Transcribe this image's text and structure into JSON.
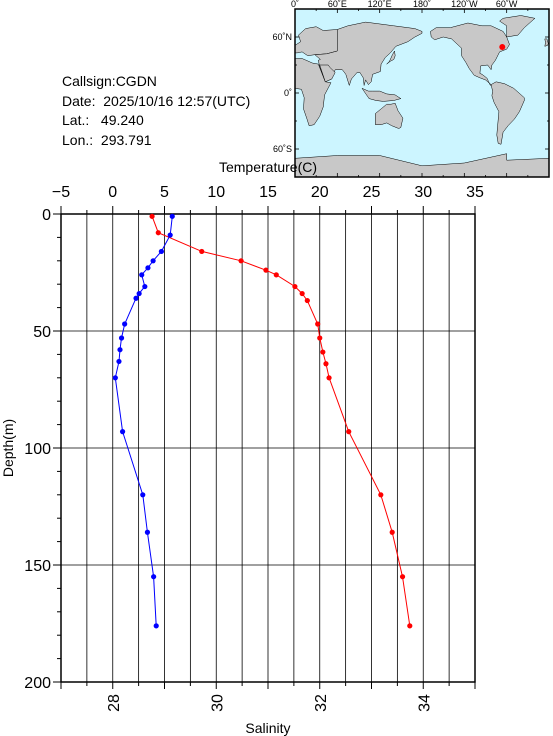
{
  "station": {
    "callsign": "Callsign:CGDN",
    "date": "Date:  2025/10/16 12:57(UTC)",
    "lat": "Lat.:   49.240",
    "lon": "Lon.:  293.791"
  },
  "map": {
    "top_labels": [
      "0˚",
      "60˚E",
      "120˚E",
      "180˚",
      "120˚W",
      "60˚W"
    ],
    "left_labels": [
      "60˚N",
      "0˚",
      "60˚S"
    ],
    "ocean_color": "#ccf5ff",
    "land_color": "#c8c8c8",
    "marker_color": "#ff0000",
    "marker": {
      "lon": 293.791,
      "lat": 49.24
    }
  },
  "chart_data": {
    "type": "line",
    "title": "",
    "ylabel": "Depth(m)",
    "top_xlabel": "Temperature(C)",
    "bottom_xlabel": "Salinity",
    "ylim": [
      0,
      200
    ],
    "y_inverted": true,
    "y_ticks": [
      0,
      50,
      100,
      150,
      200
    ],
    "temperature_axis": {
      "range": [
        -5,
        35
      ],
      "ticks": [
        -5,
        0,
        5,
        10,
        15,
        20,
        25,
        30,
        35
      ]
    },
    "salinity_axis": {
      "range": [
        27,
        35
      ],
      "ticks": [
        28,
        30,
        32,
        34
      ]
    },
    "grid": true,
    "series": [
      {
        "color": "#ff0000",
        "axis": "temperature",
        "points": [
          {
            "x": 3.8,
            "depth": 1
          },
          {
            "x": 4.4,
            "depth": 8
          },
          {
            "x": 8.6,
            "depth": 16
          },
          {
            "x": 12.4,
            "depth": 20
          },
          {
            "x": 14.8,
            "depth": 24
          },
          {
            "x": 15.8,
            "depth": 26
          },
          {
            "x": 17.6,
            "depth": 31
          },
          {
            "x": 18.3,
            "depth": 34
          },
          {
            "x": 18.8,
            "depth": 37
          },
          {
            "x": 19.8,
            "depth": 47
          },
          {
            "x": 20.0,
            "depth": 53
          },
          {
            "x": 20.3,
            "depth": 59
          },
          {
            "x": 20.6,
            "depth": 64
          },
          {
            "x": 20.9,
            "depth": 70
          },
          {
            "x": 22.8,
            "depth": 93
          },
          {
            "x": 25.9,
            "depth": 120
          },
          {
            "x": 27.0,
            "depth": 136
          },
          {
            "x": 28.0,
            "depth": 155
          },
          {
            "x": 28.7,
            "depth": 176
          }
        ]
      },
      {
        "color": "#0000ff",
        "axis": "salinity",
        "points": [
          {
            "x": 29.15,
            "depth": 1
          },
          {
            "x": 29.11,
            "depth": 9
          },
          {
            "x": 28.94,
            "depth": 16
          },
          {
            "x": 28.78,
            "depth": 20
          },
          {
            "x": 28.68,
            "depth": 23
          },
          {
            "x": 28.56,
            "depth": 26
          },
          {
            "x": 28.62,
            "depth": 31
          },
          {
            "x": 28.51,
            "depth": 34
          },
          {
            "x": 28.45,
            "depth": 36
          },
          {
            "x": 28.23,
            "depth": 47
          },
          {
            "x": 28.17,
            "depth": 53
          },
          {
            "x": 28.14,
            "depth": 58
          },
          {
            "x": 28.12,
            "depth": 63
          },
          {
            "x": 28.05,
            "depth": 70
          },
          {
            "x": 28.19,
            "depth": 93
          },
          {
            "x": 28.58,
            "depth": 120
          },
          {
            "x": 28.67,
            "depth": 136
          },
          {
            "x": 28.79,
            "depth": 155
          },
          {
            "x": 28.84,
            "depth": 176
          }
        ]
      }
    ]
  }
}
